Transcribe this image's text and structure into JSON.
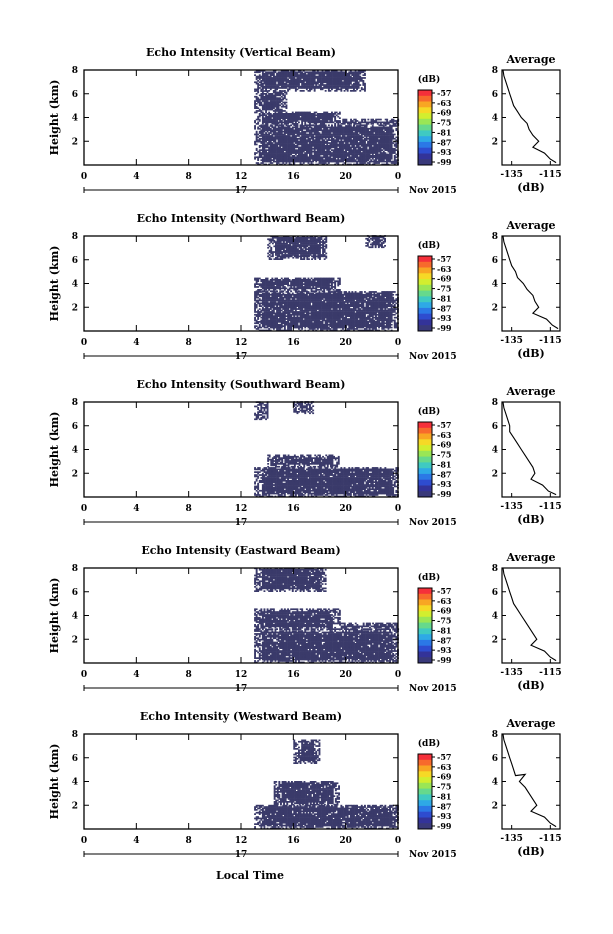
{
  "chart_data": [
    {
      "type": "heatmap",
      "title": "Echo Intensity (Vertical Beam)",
      "ylabel": "Height (km)",
      "x_ticks": [
        "0",
        "4",
        "8",
        "12",
        "16",
        "20",
        "0"
      ],
      "y_ticks": [
        "2",
        "4",
        "6",
        "8"
      ],
      "xlim": [
        0,
        24
      ],
      "ylim": [
        0,
        8
      ],
      "date_day": "17",
      "date_month_year": "Nov 2015",
      "colorbar_unit": "(dB)",
      "colorbar_ticks": [
        "-57",
        "-63",
        "-69",
        "-75",
        "-81",
        "-87",
        "-93",
        "-99"
      ],
      "echo_regions": [
        {
          "t": [
            13.0,
            21.5
          ],
          "h": [
            6.2,
            8.0
          ]
        },
        {
          "t": [
            13.0,
            15.5
          ],
          "h": [
            4.5,
            6.2
          ]
        },
        {
          "t": [
            13.0,
            24.0
          ],
          "h": [
            0.0,
            3.3
          ]
        },
        {
          "t": [
            13.0,
            19.5
          ],
          "h": [
            3.3,
            4.5
          ]
        },
        {
          "t": [
            19.5,
            24.0
          ],
          "h": [
            3.3,
            3.8
          ]
        }
      ],
      "average_panel": {
        "title": "Average",
        "xlabel": "(dB)",
        "x_ticks": [
          "-135",
          "-115"
        ],
        "y_ticks": [
          "2",
          "4",
          "6",
          "8"
        ],
        "xlim": [
          -140,
          -110
        ],
        "profile": [
          [
            -139.5,
            8.0
          ],
          [
            -139,
            7.5
          ],
          [
            -138,
            7.0
          ],
          [
            -137,
            6.5
          ],
          [
            -136,
            6.0
          ],
          [
            -135,
            5.5
          ],
          [
            -134,
            5.0
          ],
          [
            -132,
            4.5
          ],
          [
            -130,
            4.0
          ],
          [
            -127,
            3.5
          ],
          [
            -126,
            3.0
          ],
          [
            -124,
            2.5
          ],
          [
            -121,
            2.0
          ],
          [
            -124,
            1.5
          ],
          [
            -118,
            1.0
          ],
          [
            -115,
            0.5
          ],
          [
            -112,
            0.2
          ]
        ]
      }
    },
    {
      "type": "heatmap",
      "title": "Echo Intensity (Northward Beam)",
      "ylabel": "Height (km)",
      "x_ticks": [
        "0",
        "4",
        "8",
        "12",
        "16",
        "20",
        "0"
      ],
      "y_ticks": [
        "2",
        "4",
        "6",
        "8"
      ],
      "xlim": [
        0,
        24
      ],
      "ylim": [
        0,
        8
      ],
      "date_day": "17",
      "date_month_year": "Nov 2015",
      "colorbar_unit": "(dB)",
      "colorbar_ticks": [
        "-57",
        "-63",
        "-69",
        "-75",
        "-81",
        "-87",
        "-93",
        "-99"
      ],
      "echo_regions": [
        {
          "t": [
            14.0,
            18.5
          ],
          "h": [
            6.0,
            8.0
          ]
        },
        {
          "t": [
            21.5,
            23.0
          ],
          "h": [
            7.0,
            8.0
          ]
        },
        {
          "t": [
            13.0,
            24.0
          ],
          "h": [
            0.0,
            3.3
          ]
        },
        {
          "t": [
            13.0,
            19.5
          ],
          "h": [
            3.3,
            4.5
          ]
        }
      ],
      "average_panel": {
        "title": "Average",
        "xlabel": "(dB)",
        "x_ticks": [
          "-135",
          "-115"
        ],
        "y_ticks": [
          "2",
          "4",
          "6",
          "8"
        ],
        "xlim": [
          -140,
          -110
        ],
        "profile": [
          [
            -139.5,
            8.0
          ],
          [
            -139,
            7.5
          ],
          [
            -138,
            7.0
          ],
          [
            -137,
            6.5
          ],
          [
            -136,
            6.0
          ],
          [
            -135,
            5.5
          ],
          [
            -133,
            5.0
          ],
          [
            -132,
            4.5
          ],
          [
            -129,
            4.0
          ],
          [
            -127,
            3.5
          ],
          [
            -124,
            3.0
          ],
          [
            -123,
            2.5
          ],
          [
            -121,
            2.0
          ],
          [
            -124,
            1.5
          ],
          [
            -117,
            1.0
          ],
          [
            -114,
            0.5
          ],
          [
            -111,
            0.2
          ]
        ]
      }
    },
    {
      "type": "heatmap",
      "title": "Echo Intensity (Southward Beam)",
      "ylabel": "Height (km)",
      "x_ticks": [
        "0",
        "4",
        "8",
        "12",
        "16",
        "20",
        "0"
      ],
      "y_ticks": [
        "2",
        "4",
        "6",
        "8"
      ],
      "xlim": [
        0,
        24
      ],
      "ylim": [
        0,
        8
      ],
      "date_day": "17",
      "date_month_year": "Nov 2015",
      "colorbar_unit": "(dB)",
      "colorbar_ticks": [
        "-57",
        "-63",
        "-69",
        "-75",
        "-81",
        "-87",
        "-93",
        "-99"
      ],
      "echo_regions": [
        {
          "t": [
            13.0,
            14.0
          ],
          "h": [
            6.5,
            8.0
          ]
        },
        {
          "t": [
            16.0,
            17.5
          ],
          "h": [
            7.0,
            8.0
          ]
        },
        {
          "t": [
            13.0,
            24.0
          ],
          "h": [
            0.0,
            2.5
          ]
        },
        {
          "t": [
            14.0,
            19.5
          ],
          "h": [
            2.5,
            3.5
          ]
        }
      ],
      "average_panel": {
        "title": "Average",
        "xlabel": "(dB)",
        "x_ticks": [
          "-135",
          "-115"
        ],
        "y_ticks": [
          "2",
          "4",
          "6",
          "8"
        ],
        "xlim": [
          -140,
          -110
        ],
        "profile": [
          [
            -139.5,
            8.0
          ],
          [
            -139,
            7.5
          ],
          [
            -138,
            7.0
          ],
          [
            -137,
            6.5
          ],
          [
            -136,
            6.0
          ],
          [
            -136,
            5.5
          ],
          [
            -134,
            5.0
          ],
          [
            -132,
            4.5
          ],
          [
            -130,
            4.0
          ],
          [
            -128,
            3.5
          ],
          [
            -126,
            3.0
          ],
          [
            -124,
            2.5
          ],
          [
            -123,
            2.0
          ],
          [
            -125,
            1.5
          ],
          [
            -119,
            1.0
          ],
          [
            -116,
            0.5
          ],
          [
            -112,
            0.2
          ]
        ]
      }
    },
    {
      "type": "heatmap",
      "title": "Echo Intensity (Eastward Beam)",
      "ylabel": "Height (km)",
      "x_ticks": [
        "0",
        "4",
        "8",
        "12",
        "16",
        "20",
        "0"
      ],
      "y_ticks": [
        "2",
        "4",
        "6",
        "8"
      ],
      "xlim": [
        0,
        24
      ],
      "ylim": [
        0,
        8
      ],
      "date_day": "17",
      "date_month_year": "Nov 2015",
      "colorbar_unit": "(dB)",
      "colorbar_ticks": [
        "-57",
        "-63",
        "-69",
        "-75",
        "-81",
        "-87",
        "-93",
        "-99"
      ],
      "echo_regions": [
        {
          "t": [
            13.0,
            18.5
          ],
          "h": [
            6.0,
            8.0
          ]
        },
        {
          "t": [
            13.0,
            24.0
          ],
          "h": [
            0.0,
            2.8
          ]
        },
        {
          "t": [
            13.0,
            19.5
          ],
          "h": [
            2.8,
            4.5
          ]
        },
        {
          "t": [
            19.5,
            24.0
          ],
          "h": [
            2.8,
            3.3
          ]
        }
      ],
      "average_panel": {
        "title": "Average",
        "xlabel": "(dB)",
        "x_ticks": [
          "-135",
          "-115"
        ],
        "y_ticks": [
          "2",
          "4",
          "6",
          "8"
        ],
        "xlim": [
          -140,
          -110
        ],
        "profile": [
          [
            -139.5,
            8.0
          ],
          [
            -139,
            7.5
          ],
          [
            -138,
            7.0
          ],
          [
            -137,
            6.5
          ],
          [
            -136,
            6.0
          ],
          [
            -135,
            5.5
          ],
          [
            -134,
            5.0
          ],
          [
            -132,
            4.5
          ],
          [
            -130,
            4.0
          ],
          [
            -128,
            3.5
          ],
          [
            -126,
            3.0
          ],
          [
            -124,
            2.5
          ],
          [
            -122,
            2.0
          ],
          [
            -125,
            1.5
          ],
          [
            -118,
            1.0
          ],
          [
            -115,
            0.5
          ],
          [
            -112,
            0.2
          ]
        ]
      }
    },
    {
      "type": "heatmap",
      "title": "Echo Intensity (Westward Beam)",
      "ylabel": "Height (km)",
      "x_ticks": [
        "0",
        "4",
        "8",
        "12",
        "16",
        "20",
        "0"
      ],
      "y_ticks": [
        "2",
        "4",
        "6",
        "8"
      ],
      "xlim": [
        0,
        24
      ],
      "ylim": [
        0,
        8
      ],
      "date_day": "17",
      "date_month_year": "Nov 2015",
      "colorbar_unit": "(dB)",
      "colorbar_ticks": [
        "-57",
        "-63",
        "-69",
        "-75",
        "-81",
        "-87",
        "-93",
        "-99"
      ],
      "echo_regions": [
        {
          "t": [
            16.0,
            18.0
          ],
          "h": [
            5.5,
            7.5
          ]
        },
        {
          "t": [
            13.0,
            24.0
          ],
          "h": [
            0.0,
            2.0
          ]
        },
        {
          "t": [
            14.5,
            19.5
          ],
          "h": [
            2.0,
            4.0
          ]
        }
      ],
      "average_panel": {
        "title": "Average",
        "xlabel": "(dB)",
        "x_ticks": [
          "-135",
          "-115"
        ],
        "y_ticks": [
          "2",
          "4",
          "6",
          "8"
        ],
        "xlim": [
          -140,
          -110
        ],
        "profile": [
          [
            -139.5,
            8.0
          ],
          [
            -139,
            7.5
          ],
          [
            -138,
            7.0
          ],
          [
            -137,
            6.5
          ],
          [
            -136,
            6.0
          ],
          [
            -135,
            5.5
          ],
          [
            -134,
            5.0
          ],
          [
            -133,
            4.5
          ],
          [
            -128,
            4.6
          ],
          [
            -131,
            4.0
          ],
          [
            -128,
            3.5
          ],
          [
            -126,
            3.0
          ],
          [
            -124,
            2.5
          ],
          [
            -122,
            2.0
          ],
          [
            -125,
            1.5
          ],
          [
            -118,
            1.0
          ],
          [
            -115,
            0.5
          ],
          [
            -112,
            0.2
          ]
        ]
      }
    }
  ],
  "figure": {
    "xlabel": "Local Time",
    "echo_color": "#3a3a6a",
    "colorbar_colors": [
      "#f5303a",
      "#f76a2c",
      "#f8a623",
      "#f6d926",
      "#d2ee2f",
      "#9ae655",
      "#66d98c",
      "#3fcac2",
      "#2ea9e6",
      "#2b78e6",
      "#2e4ccf",
      "#333399",
      "#39397a"
    ]
  }
}
